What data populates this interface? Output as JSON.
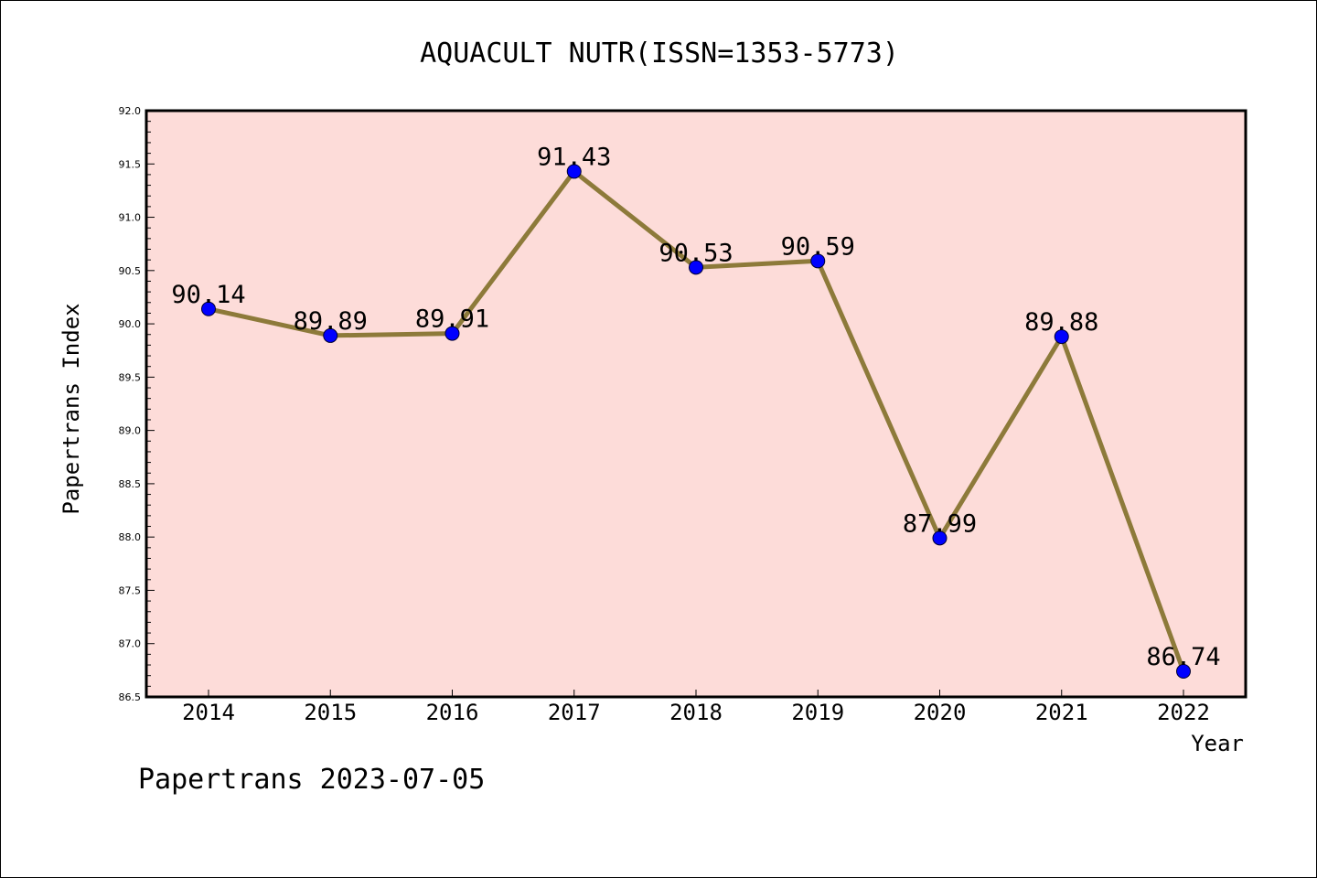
{
  "footer": {
    "text": "Papertrans 2023-07-05"
  },
  "chart_data": {
    "type": "line",
    "title": "AQUACULT NUTR(ISSN=1353-5773)",
    "xlabel": "Year",
    "ylabel": "Papertrans Index",
    "categories": [
      "2014",
      "2015",
      "2016",
      "2017",
      "2018",
      "2019",
      "2020",
      "2021",
      "2022"
    ],
    "values": [
      90.14,
      89.89,
      89.91,
      91.43,
      90.53,
      90.59,
      87.99,
      89.88,
      86.74
    ],
    "data_labels": [
      "90.14",
      "89.89",
      "89.91",
      "91.43",
      "90.53",
      "90.59",
      "87.99",
      "89.88",
      "86.74"
    ],
    "ylim": [
      86.5,
      92.0
    ],
    "y_ticks": [
      "86.5",
      "87.0",
      "87.5",
      "88.0",
      "88.5",
      "89.0",
      "89.5",
      "90.0",
      "90.5",
      "91.0",
      "91.5",
      "92.0"
    ],
    "grid": false,
    "legend": "none",
    "colors": {
      "plot_background": "#fddcd9",
      "line": "#8d7a3a",
      "marker": "#0000ff",
      "frame": "#000000"
    }
  }
}
